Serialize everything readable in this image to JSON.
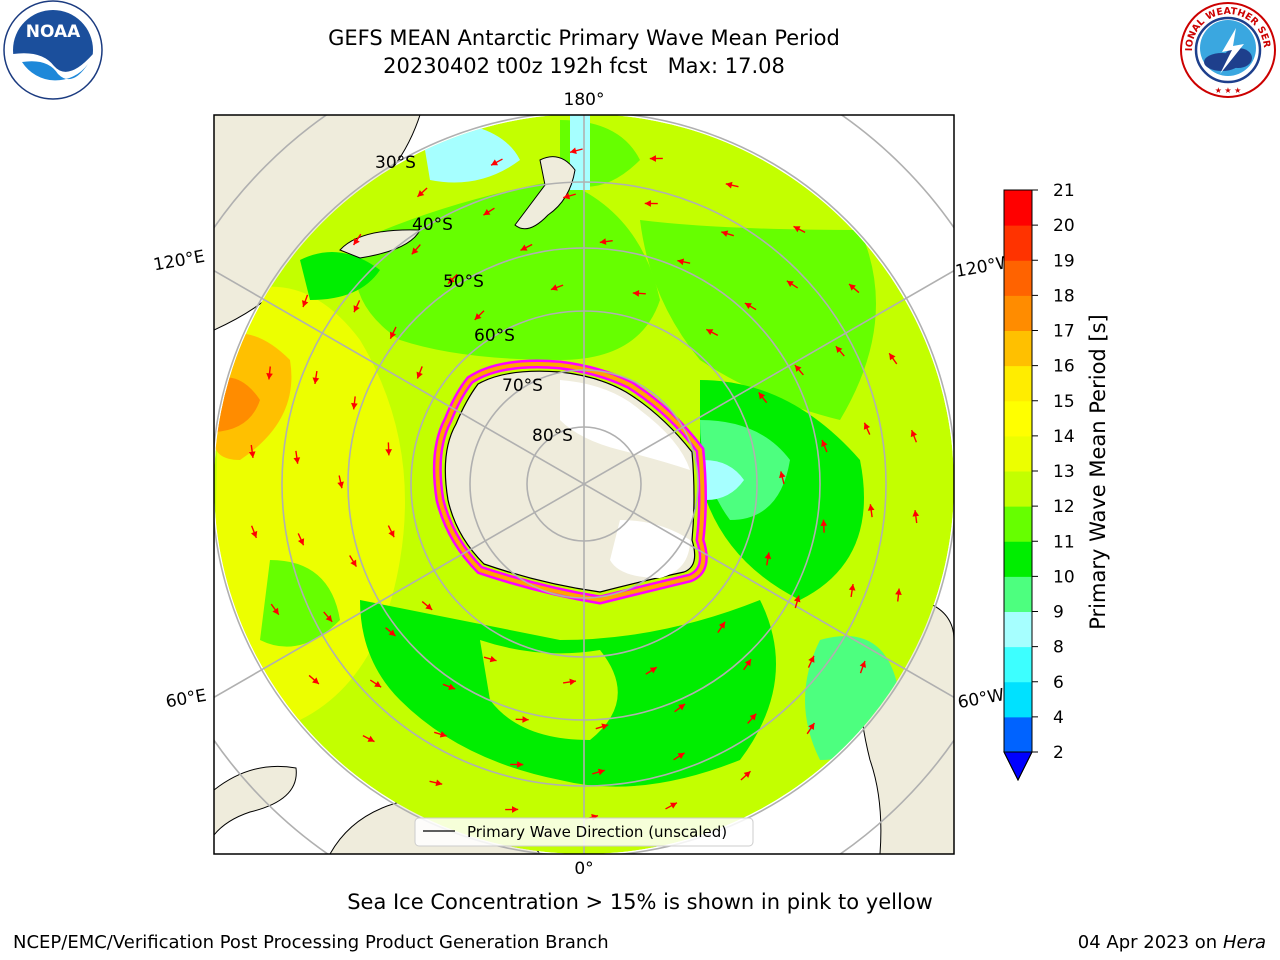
{
  "header": {
    "title_line1": "GEFS MEAN Antarctic Primary Wave Mean Period",
    "title_line2": "20230402 t00z 192h fcst   Max: 17.08"
  },
  "logos": {
    "left_icon": "noaa-logo-icon",
    "left_text": "NOAA",
    "right_icon": "nws-logo-icon",
    "right_text": "NATIONAL WEATHER SERVICE"
  },
  "map": {
    "projection": "south-polar-stereographic",
    "lon_labels": {
      "top": "180°",
      "bottom": "0°",
      "left_upper": "120°E",
      "left_lower": "60°E",
      "right_upper": "120°W",
      "right_lower": "60°W"
    },
    "lat_labels": [
      "30°S",
      "40°S",
      "50°S",
      "60°S",
      "70°S",
      "80°S"
    ],
    "legend_text": "Primary Wave Direction (unscaled)",
    "arrow_color": "#ff0000",
    "land_color": "#efecdc",
    "ice_note_colors": [
      "#ff00ff",
      "#ffa500",
      "#ffff00"
    ]
  },
  "colorbar": {
    "label": "Primary Wave Mean Period [s]",
    "ticks": [
      "2",
      "4",
      "6",
      "8",
      "9",
      "10",
      "11",
      "12",
      "13",
      "14",
      "15",
      "16",
      "17",
      "18",
      "19",
      "20",
      "21"
    ],
    "colors": [
      "#0063ff",
      "#00e1ff",
      "#3dffff",
      "#a6ffff",
      "#4dff7f",
      "#00ee00",
      "#66ff00",
      "#c3ff00",
      "#ecff00",
      "#ffff00",
      "#ffed00",
      "#ffc000",
      "#ff8c00",
      "#ff6300",
      "#ff3300",
      "#ff0000"
    ],
    "extend_below_color": "#0000ff"
  },
  "caption": "Sea Ice Concentration > 15% is shown in pink to yellow",
  "footer": {
    "left": "NCEP/EMC/Verification Post Processing Product Generation Branch",
    "right_date": "04 Apr 2023 on",
    "right_host": "Hera"
  }
}
